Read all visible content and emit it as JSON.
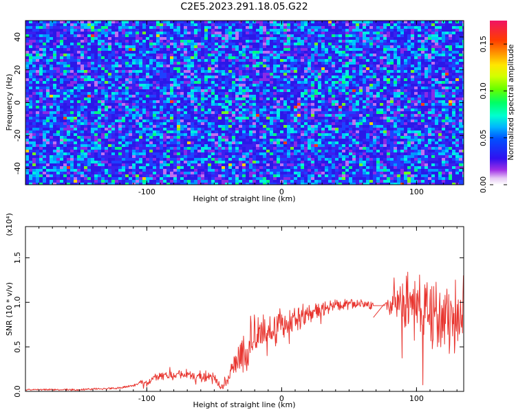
{
  "title": "C2E5.2023.291.18.05.G22",
  "chart_data": [
    {
      "type": "heatmap",
      "xlabel": "Height of straight line (km)",
      "ylabel": "Frequency (Hz)",
      "xlim": [
        -190,
        135
      ],
      "ylim": [
        -50,
        50
      ],
      "xticks": [
        -100,
        0,
        100
      ],
      "yticks": [
        -40,
        -20,
        0,
        20,
        40
      ],
      "colorbar": {
        "label": "Normalized spectral amplitude",
        "range": [
          0.0,
          0.175
        ],
        "ticks": [
          "0.00",
          "0.05",
          "0.10",
          "0.15"
        ]
      },
      "note": "dense noisy spectrogram; background blue/purple ~0.02-0.04 with scattered cyan/green spots ~0.06-0.09, rare yellow/red ~0.12-0.17"
    },
    {
      "type": "line",
      "xlabel": "Height of straight line (km)",
      "ylabel": "SNR (10 * v/v)",
      "yscale_label": "(x10⁴)",
      "xlim": [
        -190,
        135
      ],
      "ylim": [
        0.0,
        1.85
      ],
      "xticks": [
        -100,
        0,
        100
      ],
      "yticks": [
        "0.0",
        "0.5",
        "1.0",
        "1.5"
      ],
      "series": [
        {
          "color": "#e8352f",
          "points": [
            [
              -190,
              0.02
            ],
            [
              -150,
              0.02
            ],
            [
              -120,
              0.04
            ],
            [
              -100,
              0.1
            ],
            [
              -90,
              0.18
            ],
            [
              -70,
              0.18
            ],
            [
              -50,
              0.15
            ],
            [
              -45,
              0.04
            ],
            [
              -40,
              0.15
            ],
            [
              -30,
              0.4
            ],
            [
              -20,
              0.6
            ],
            [
              -10,
              0.7
            ],
            [
              0,
              0.76
            ],
            [
              10,
              0.8
            ],
            [
              20,
              0.86
            ],
            [
              30,
              0.92
            ],
            [
              40,
              0.96
            ],
            [
              50,
              0.97
            ],
            [
              60,
              0.98
            ],
            [
              68,
              0.97
            ],
            [
              75,
              0.92
            ],
            [
              80,
              0.95
            ],
            [
              90,
              1.0
            ],
            [
              100,
              0.95
            ],
            [
              110,
              0.9
            ],
            [
              120,
              0.85
            ],
            [
              135,
              0.85
            ]
          ],
          "noise_amplitude": [
            [
              -190,
              0.01
            ],
            [
              -110,
              0.015
            ],
            [
              -100,
              0.05
            ],
            [
              -50,
              0.08
            ],
            [
              -45,
              0.03
            ],
            [
              -40,
              0.1
            ],
            [
              -30,
              0.25
            ],
            [
              0,
              0.22
            ],
            [
              20,
              0.15
            ],
            [
              40,
              0.08
            ],
            [
              68,
              0.06
            ],
            [
              80,
              0.12
            ],
            [
              90,
              0.45
            ],
            [
              110,
              0.55
            ],
            [
              135,
              0.55
            ]
          ],
          "gap": [
            68,
            76
          ]
        }
      ]
    }
  ]
}
